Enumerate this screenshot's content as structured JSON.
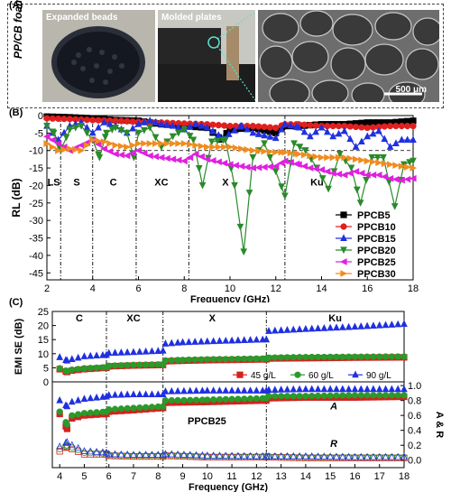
{
  "panel_labels": {
    "a": "(A)",
    "b": "(B)",
    "c": "(C)"
  },
  "panel_a": {
    "vertical_label": "PP/CB foam",
    "photo1_caption": "Expanded beads",
    "photo2_caption": "Molded plates",
    "sem_scale": "500 μm"
  },
  "colors": {
    "PPCB5": "#000000",
    "PPCB10": "#e02020",
    "PPCB15": "#2030e0",
    "PPCB20": "#2a8a2a",
    "PPCB25": "#e020e0",
    "PPCB30": "#f08c20"
  },
  "chart_data": [
    {
      "type": "line",
      "xlabel": "Frequency (GHz)",
      "ylabel": "RL (dB)",
      "xlim": [
        2,
        18
      ],
      "ylim": [
        -47,
        0
      ],
      "xticks": [
        2,
        4,
        6,
        8,
        10,
        12,
        14,
        16,
        18
      ],
      "yticks": [
        0,
        -5,
        -10,
        -15,
        -20,
        -25,
        -30,
        -35,
        -40,
        -45
      ],
      "band_boundaries": [
        2.6,
        4,
        5.9,
        8.2,
        12.4
      ],
      "band_labels": [
        {
          "label": "LS",
          "x": 2.3
        },
        {
          "label": "S",
          "x": 3.3
        },
        {
          "label": "C",
          "x": 4.9
        },
        {
          "label": "XC",
          "x": 7.0
        },
        {
          "label": "X",
          "x": 9.8
        },
        {
          "label": "Ku",
          "x": 13.8
        }
      ],
      "legend_position": "right",
      "series": [
        {
          "name": "PPCB5",
          "x": [
            2,
            3,
            4,
            5,
            6,
            7,
            8,
            9,
            9.6,
            10,
            11,
            12,
            12.4,
            13,
            14,
            15,
            16,
            17,
            18
          ],
          "y": [
            -0.3,
            -0.5,
            -0.8,
            -1.3,
            -1.5,
            -2.5,
            -3.0,
            -3.5,
            -6.8,
            -4.0,
            -3.5,
            -5.0,
            -3.0,
            -3.0,
            -2.5,
            -2.5,
            -2.0,
            -2.0,
            -1.5
          ]
        },
        {
          "name": "PPCB10",
          "x": [
            2,
            3,
            4,
            5,
            6,
            7,
            8,
            9,
            10,
            11,
            12,
            12.4,
            13,
            14,
            15,
            16,
            17,
            18
          ],
          "y": [
            -0.8,
            -1.0,
            -1.3,
            -1.5,
            -1.8,
            -2.0,
            -2.3,
            -2.5,
            -3.0,
            -3.0,
            -3.5,
            -2.5,
            -2.5,
            -3.0,
            -3.0,
            -3.5,
            -3.0,
            -3.0
          ]
        },
        {
          "name": "PPCB15",
          "x": [
            2,
            2.5,
            3,
            3.5,
            4,
            4.5,
            5,
            5.5,
            6,
            6.5,
            7,
            7.5,
            8,
            8.5,
            9,
            9.7,
            10.5,
            11,
            12,
            12.4,
            13,
            13.5,
            14,
            14.5,
            15,
            15.5,
            16,
            16.5,
            17,
            17.5,
            18
          ],
          "y": [
            -3,
            -7,
            -3,
            -2,
            -5,
            -2,
            -3,
            -5,
            -2.5,
            -1.5,
            -2.5,
            -3,
            -4,
            -2.5,
            -3.5,
            -6.5,
            -3,
            -5,
            -6.5,
            -2.5,
            -3.5,
            -6,
            -3.5,
            -6,
            -4.5,
            -9,
            -6,
            -4.5,
            -9,
            -7,
            -7
          ]
        },
        {
          "name": "PPCB20",
          "x": [
            2,
            2.3,
            2.6,
            3,
            3.5,
            4,
            4.3,
            4.6,
            5,
            5.5,
            5.8,
            6,
            6.5,
            7,
            7.5,
            8,
            8.4,
            8.8,
            9.2,
            9.8,
            10.2,
            10.6,
            11,
            11.5,
            12,
            12.4,
            12.8,
            13.3,
            13.8,
            14.3,
            14.8,
            15.3,
            15.7,
            16.2,
            16.7,
            17.2,
            17.6,
            18
          ],
          "y": [
            -3,
            -5,
            -10,
            -4,
            -3,
            -7,
            -12,
            -5,
            -3.5,
            -5,
            -12,
            -5,
            -3.5,
            -9,
            -6,
            -4,
            -7,
            -20,
            -7.5,
            -7,
            -20,
            -39,
            -12,
            -8,
            -16,
            -23,
            -8,
            -10,
            -15,
            -21,
            -11,
            -15,
            -25,
            -12,
            -12,
            -26,
            -14,
            -13
          ]
        },
        {
          "name": "PPCB25",
          "x": [
            2,
            2.5,
            3,
            3.5,
            4,
            4.5,
            5,
            5.5,
            6,
            6.5,
            7,
            7.5,
            8,
            8.5,
            9,
            10,
            11,
            12,
            12.4,
            13,
            13.5,
            14,
            14.5,
            15,
            15.5,
            16,
            16.5,
            17,
            17.5,
            18
          ],
          "y": [
            -6,
            -8,
            -10,
            -8.5,
            -7,
            -9.5,
            -11,
            -11.5,
            -10,
            -11.5,
            -12,
            -12.5,
            -13,
            -11,
            -12.5,
            -14,
            -15,
            -14.5,
            -13,
            -14,
            -15,
            -15.5,
            -16.5,
            -17,
            -16,
            -17,
            -17,
            -18,
            -18.5,
            -18
          ]
        },
        {
          "name": "PPCB30",
          "x": [
            2,
            2.5,
            3,
            3.5,
            4,
            4.5,
            5,
            5.5,
            6,
            7,
            8,
            9,
            10,
            11,
            12,
            12.4,
            13,
            14,
            15,
            16,
            17,
            18
          ],
          "y": [
            -8,
            -10,
            -9.5,
            -10,
            -7,
            -7.5,
            -8.5,
            -9,
            -8,
            -8,
            -8,
            -9,
            -9,
            -10,
            -10.5,
            -10.5,
            -11,
            -12,
            -12,
            -13,
            -14,
            -15
          ]
        }
      ]
    },
    {
      "type": "line",
      "xlabel": "",
      "ylabel": "EMI SE (dB)",
      "xlim": [
        3.7,
        18
      ],
      "ylim": [
        0,
        25
      ],
      "yticks": [
        0,
        5,
        10,
        15,
        20,
        25
      ],
      "band_boundaries": [
        5.9,
        8.2,
        12.4
      ],
      "band_labels": [
        {
          "label": "C",
          "x": 4.8
        },
        {
          "label": "XC",
          "x": 7.0
        },
        {
          "label": "X",
          "x": 10.2
        },
        {
          "label": "Ku",
          "x": 15.2
        }
      ],
      "legend_position": "bottom-right",
      "series": [
        {
          "name": "45 g/L",
          "x": [
            4,
            4.3,
            4.5,
            5,
            5.9,
            6,
            7,
            8.2,
            8.3,
            9,
            10,
            11,
            12.4,
            12.5,
            14,
            16,
            18
          ],
          "y": [
            4.5,
            3.5,
            4,
            4.5,
            5,
            5.5,
            5.8,
            6,
            7.3,
            7.5,
            7.7,
            7.8,
            8,
            8.3,
            8.4,
            8.6,
            8.7
          ]
        },
        {
          "name": "60 g/L",
          "x": [
            4,
            4.3,
            4.5,
            5,
            5.9,
            6,
            7,
            8.2,
            8.3,
            9,
            10,
            11,
            12.4,
            12.5,
            14,
            16,
            18
          ],
          "y": [
            4.8,
            3.8,
            4.3,
            4.8,
            5.2,
            5.7,
            6,
            6.2,
            7.6,
            7.8,
            8,
            8.1,
            8.3,
            8.6,
            8.8,
            8.9,
            9
          ]
        },
        {
          "name": "90 g/L",
          "x": [
            4,
            4.3,
            4.5,
            5,
            5.9,
            6,
            7,
            8.2,
            8.3,
            9,
            10,
            11,
            12.4,
            12.5,
            14,
            16,
            18
          ],
          "y": [
            8.7,
            7.5,
            8,
            9,
            9.5,
            10.2,
            10.5,
            11,
            13.5,
            14,
            14.3,
            14.6,
            15,
            18,
            18.7,
            19.5,
            20.5
          ]
        }
      ]
    },
    {
      "type": "line",
      "xlabel": "Frequency (GHz)",
      "ylabel": "A & R",
      "xlim": [
        3.7,
        18
      ],
      "ylim": [
        -0.1,
        1.05
      ],
      "xticks": [
        4,
        5,
        6,
        7,
        8,
        9,
        10,
        11,
        12,
        13,
        14,
        15,
        16,
        17,
        18
      ],
      "yticks": [
        0.0,
        0.2,
        0.4,
        0.6,
        0.8,
        1.0
      ],
      "annotations": [
        "PPCB25",
        "A",
        "R"
      ],
      "series": [
        {
          "name": "A 45 g/L",
          "x": [
            4,
            4.3,
            4.5,
            5,
            5.9,
            6,
            7,
            8.2,
            8.3,
            10,
            12.4,
            12.5,
            14,
            16,
            18
          ],
          "y": [
            0.62,
            0.42,
            0.56,
            0.6,
            0.62,
            0.65,
            0.67,
            0.7,
            0.77,
            0.78,
            0.8,
            0.83,
            0.84,
            0.84,
            0.85
          ]
        },
        {
          "name": "A 60 g/L",
          "x": [
            4,
            4.3,
            4.5,
            5,
            5.9,
            6,
            7,
            8.2,
            8.3,
            10,
            12.4,
            12.5,
            14,
            16,
            18
          ],
          "y": [
            0.65,
            0.48,
            0.6,
            0.63,
            0.65,
            0.68,
            0.7,
            0.72,
            0.8,
            0.81,
            0.83,
            0.86,
            0.86,
            0.87,
            0.87
          ]
        },
        {
          "name": "A 90 g/L",
          "x": [
            4,
            4.3,
            4.5,
            5,
            5.9,
            6,
            7,
            8.2,
            8.3,
            10,
            12.4,
            12.5,
            14,
            16,
            18
          ],
          "y": [
            0.8,
            0.72,
            0.78,
            0.82,
            0.85,
            0.87,
            0.88,
            0.88,
            0.92,
            0.93,
            0.93,
            0.94,
            0.95,
            0.95,
            0.95
          ]
        },
        {
          "name": "R 45 g/L",
          "x": [
            4,
            4.3,
            4.5,
            5,
            5.9,
            6,
            7,
            8.2,
            8.3,
            10,
            12.4,
            12.5,
            14,
            16,
            18
          ],
          "y": [
            0.12,
            0.18,
            0.15,
            0.08,
            0.08,
            0.06,
            0.05,
            0.05,
            0.06,
            0.04,
            0.04,
            0.04,
            0.03,
            0.03,
            0.03
          ]
        },
        {
          "name": "R 60 g/L",
          "x": [
            4,
            4.3,
            4.5,
            5,
            5.9,
            6,
            7,
            8.2,
            8.3,
            10,
            12.4,
            12.5,
            14,
            16,
            18
          ],
          "y": [
            0.15,
            0.2,
            0.17,
            0.1,
            0.09,
            0.07,
            0.06,
            0.06,
            0.07,
            0.05,
            0.05,
            0.05,
            0.04,
            0.04,
            0.04
          ]
        },
        {
          "name": "R 90 g/L",
          "x": [
            4,
            4.3,
            4.5,
            5,
            5.9,
            6,
            7,
            8.2,
            8.3,
            10,
            12.4,
            12.5,
            14,
            16,
            18
          ],
          "y": [
            0.18,
            0.24,
            0.2,
            0.12,
            0.1,
            0.08,
            0.07,
            0.07,
            0.08,
            0.06,
            0.05,
            0.05,
            0.05,
            0.04,
            0.04
          ]
        }
      ]
    }
  ]
}
